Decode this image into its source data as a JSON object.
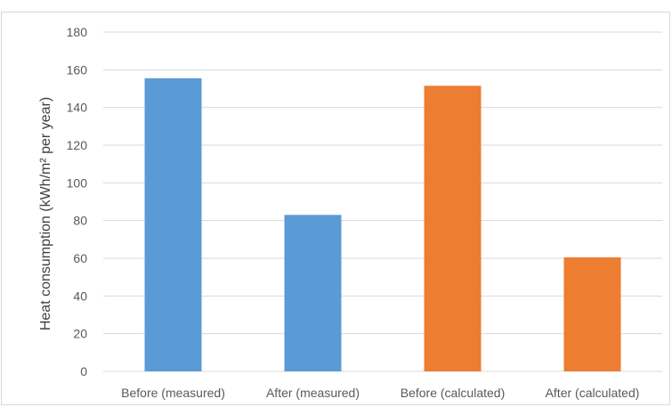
{
  "chart_data": {
    "type": "bar",
    "categories": [
      "Before (measured)",
      "After (measured)",
      "Before (calculated)",
      "After (calculated)"
    ],
    "values": [
      155.5,
      83,
      151.5,
      60.5
    ],
    "colors": [
      "#5b9bd5",
      "#5b9bd5",
      "#ed7d31",
      "#ed7d31"
    ],
    "title": "",
    "xlabel": "",
    "ylabel": "Heat consumption (kWh/m² per year)",
    "ylim": [
      0,
      180
    ],
    "yticks": [
      0,
      20,
      40,
      60,
      80,
      100,
      120,
      140,
      160,
      180
    ],
    "grid": true,
    "legend": "none"
  }
}
